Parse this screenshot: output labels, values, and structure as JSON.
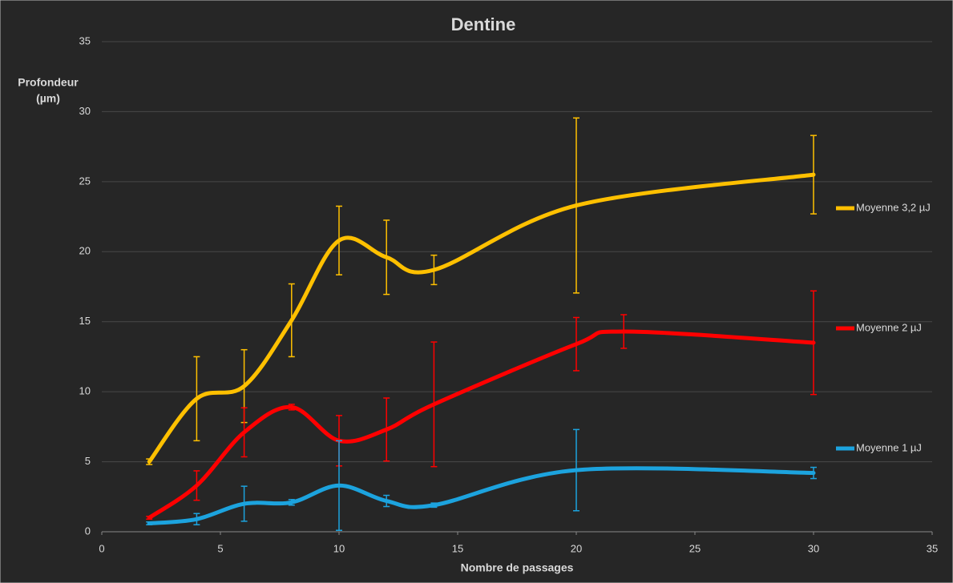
{
  "chart_data": {
    "type": "line",
    "title": "Dentine",
    "x_label": "Nombre de passages",
    "y_label": [
      "Profondeur",
      "(µm)"
    ],
    "xlim": [
      0,
      35
    ],
    "xticks": [
      0,
      5,
      10,
      15,
      20,
      25,
      30,
      35
    ],
    "ylim": [
      0,
      35
    ],
    "yticks": [
      0,
      5,
      10,
      15,
      20,
      25,
      30,
      35
    ],
    "grid": true,
    "smooth": true,
    "legend": "right",
    "series": [
      {
        "name": "Moyenne 3,2 µJ",
        "color": "#ffc000",
        "x": [
          2,
          4,
          6,
          8,
          10,
          12,
          14,
          20,
          30
        ],
        "values": [
          5.0,
          9.5,
          10.4,
          15.1,
          20.8,
          19.6,
          18.7,
          23.3,
          25.5
        ],
        "errors": [
          0.2,
          3.0,
          2.6,
          2.6,
          2.45,
          2.65,
          1.05,
          6.25,
          2.8
        ]
      },
      {
        "name": "Moyenne 2 µJ",
        "color": "#ff0000",
        "x": [
          2,
          4,
          6,
          8,
          10,
          12,
          14,
          20,
          22,
          30
        ],
        "values": [
          1.0,
          3.3,
          7.1,
          8.9,
          6.5,
          7.3,
          9.1,
          13.4,
          14.3,
          13.5
        ],
        "errors": [
          0.1,
          1.05,
          1.75,
          0.2,
          1.8,
          2.25,
          4.45,
          1.9,
          1.2,
          3.7
        ]
      },
      {
        "name": "Moyenne 1 µJ",
        "color": "#1ca3de",
        "x": [
          2,
          4,
          6,
          8,
          10,
          12,
          14,
          20,
          30
        ],
        "values": [
          0.6,
          0.9,
          2.0,
          2.1,
          3.3,
          2.2,
          1.9,
          4.4,
          4.2
        ],
        "errors": [
          0.1,
          0.4,
          1.25,
          0.2,
          3.2,
          0.4,
          0.15,
          2.9,
          0.4
        ]
      }
    ]
  }
}
